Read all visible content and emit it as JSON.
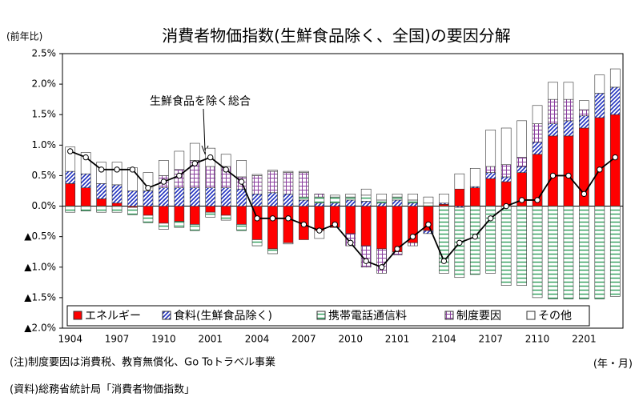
{
  "chart_data": {
    "type": "bar",
    "stacked": true,
    "title": "消費者物価指数(生鮮食品除く、全国)の要因分解",
    "y_label": "(前年比)",
    "x_label": "(年・月)",
    "note": "(注)制度要因は消費税、教育無償化、Go Toトラベル事業",
    "source": "(資料)総務省統計局「消費者物価指数」",
    "categories": [
      "1904",
      null,
      null,
      "1907",
      null,
      null,
      "1910",
      null,
      null,
      "2001",
      null,
      null,
      "2004",
      null,
      null,
      "2007",
      null,
      null,
      "2010",
      null,
      null,
      "2101",
      null,
      null,
      "2104",
      null,
      null,
      "2107",
      null,
      null,
      "2110",
      null,
      null,
      "2201",
      null,
      null
    ],
    "series": [
      {
        "name": "エネルギー",
        "color": "#ff0000",
        "pattern": "solid",
        "values": [
          0.37,
          0.3,
          0.12,
          0.05,
          -0.02,
          -0.15,
          -0.28,
          -0.25,
          -0.3,
          -0.1,
          -0.15,
          -0.3,
          -0.55,
          -0.7,
          -0.6,
          -0.55,
          -0.4,
          -0.35,
          -0.45,
          -0.65,
          -0.7,
          -0.75,
          -0.6,
          -0.4,
          0.03,
          0.28,
          0.3,
          0.45,
          0.4,
          0.55,
          0.85,
          1.15,
          1.15,
          1.28,
          1.45,
          1.5
        ]
      },
      {
        "name": "食料(生鮮食品除く)",
        "color": "#1f2fbf",
        "pattern": "diagonal",
        "values": [
          0.2,
          0.23,
          0.25,
          0.3,
          0.25,
          0.25,
          0.3,
          0.3,
          0.3,
          0.3,
          0.3,
          0.28,
          0.2,
          0.22,
          0.2,
          0.1,
          0.05,
          0.05,
          0.1,
          0.08,
          0.05,
          0.1,
          0.05,
          -0.05,
          0.02,
          -0.02,
          0.02,
          0.1,
          0.08,
          0.1,
          0.2,
          0.2,
          0.25,
          0.2,
          0.4,
          0.45
        ]
      },
      {
        "name": "携帯電話通信料",
        "color": "#2e9e5b",
        "pattern": "horizontal",
        "values": [
          -0.1,
          -0.08,
          -0.1,
          -0.1,
          -0.12,
          -0.12,
          -0.1,
          -0.1,
          -0.1,
          -0.08,
          -0.08,
          -0.1,
          -0.1,
          -0.08,
          -0.02,
          0.05,
          0.1,
          0.1,
          0.05,
          0.1,
          0.05,
          0.05,
          0.05,
          0.05,
          -1.1,
          -1.15,
          -1.12,
          -1.1,
          -1.3,
          -1.3,
          -1.5,
          -1.52,
          -1.52,
          -1.52,
          -1.52,
          -1.48
        ]
      },
      {
        "name": "制度要因",
        "color": "#8a3f9e",
        "pattern": "grid",
        "values": [
          0,
          0,
          0,
          0,
          0,
          0,
          0.2,
          0.3,
          0.45,
          0.35,
          0.35,
          0.2,
          0.3,
          0.35,
          0.35,
          0.4,
          0.05,
          0,
          -0.2,
          -0.35,
          -0.4,
          -0.05,
          -0.05,
          0,
          0,
          0,
          0,
          0.1,
          0.2,
          0.15,
          0.3,
          0.4,
          0.35,
          0.1,
          0,
          0
        ]
      },
      {
        "name": "その他",
        "color": "#ffffff",
        "pattern": "solid",
        "values": [
          0.4,
          0.35,
          0.35,
          0.37,
          0.38,
          0.3,
          0.25,
          0.3,
          0.28,
          0.3,
          0.2,
          0.27,
          0.02,
          0.02,
          0.02,
          0.02,
          -0.13,
          0.03,
          0.05,
          0.1,
          0.1,
          0.05,
          0.1,
          0.1,
          0.15,
          0.25,
          0.3,
          0.6,
          0.6,
          0.6,
          0.3,
          0.28,
          0.28,
          0.15,
          0.3,
          0.3
        ]
      }
    ],
    "line": {
      "name": "生鮮食品を除く総合",
      "color": "#000000",
      "values": [
        0.9,
        0.8,
        0.6,
        0.6,
        0.6,
        0.3,
        0.4,
        0.5,
        0.7,
        0.8,
        0.6,
        0.4,
        -0.2,
        -0.2,
        -0.2,
        -0.3,
        -0.4,
        -0.3,
        -0.6,
        -0.9,
        -1.0,
        -0.7,
        -0.5,
        -0.3,
        -0.9,
        -0.6,
        -0.5,
        -0.2,
        0.0,
        0.1,
        0.1,
        0.5,
        0.5,
        0.2,
        0.6,
        0.8
      ]
    },
    "ylim": [
      -2.0,
      2.5
    ],
    "yticks": [
      {
        "value": 2.5,
        "label": "2.5%"
      },
      {
        "value": 2.0,
        "label": "2.0%"
      },
      {
        "value": 1.5,
        "label": "1.5%"
      },
      {
        "value": 1.0,
        "label": "1.0%"
      },
      {
        "value": 0.5,
        "label": "0.5%"
      },
      {
        "value": 0,
        "label": "0.0%"
      },
      {
        "value": -0.5,
        "label": "▲0.5%"
      },
      {
        "value": -1.0,
        "label": "▲1.0%"
      },
      {
        "value": -1.5,
        "label": "▲1.5%"
      },
      {
        "value": -2.0,
        "label": "▲2.0%"
      }
    ],
    "legend": "bottom"
  }
}
